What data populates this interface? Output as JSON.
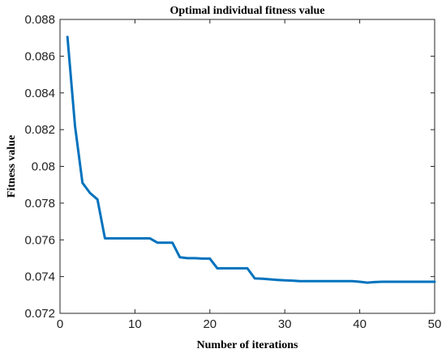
{
  "chart_data": {
    "type": "line",
    "title": "Optimal individual fitness value",
    "xlabel": "Number of iterations",
    "ylabel": "Fitness value",
    "xlim": [
      0,
      50
    ],
    "ylim": [
      0.072,
      0.088
    ],
    "xticks": [
      0,
      10,
      20,
      30,
      40,
      50
    ],
    "xtick_labels": [
      "0",
      "10",
      "20",
      "30",
      "40",
      "50"
    ],
    "yticks": [
      0.072,
      0.074,
      0.076,
      0.078,
      0.08,
      0.082,
      0.084,
      0.086,
      0.088
    ],
    "ytick_labels": [
      "0.072",
      "0.074",
      "0.076",
      "0.078",
      "0.08",
      "0.082",
      "0.084",
      "0.086",
      "0.088"
    ],
    "grid": false,
    "series": [
      {
        "color": "#0072BD",
        "x": [
          1,
          2,
          3,
          4,
          5,
          6,
          7,
          8,
          9,
          10,
          11,
          12,
          13,
          14,
          15,
          16,
          17,
          18,
          19,
          20,
          21,
          22,
          23,
          24,
          25,
          26,
          27,
          28,
          29,
          30,
          31,
          32,
          33,
          34,
          35,
          36,
          37,
          38,
          39,
          40,
          41,
          42,
          43,
          44,
          45,
          46,
          47,
          48,
          49,
          50
        ],
        "y": [
          0.08705,
          0.0822,
          0.0791,
          0.07855,
          0.0782,
          0.07608,
          0.07608,
          0.07608,
          0.07608,
          0.07608,
          0.07608,
          0.07608,
          0.07585,
          0.07585,
          0.07585,
          0.07505,
          0.075,
          0.075,
          0.07498,
          0.07498,
          0.07445,
          0.07445,
          0.07445,
          0.07445,
          0.07445,
          0.0739,
          0.07388,
          0.07385,
          0.07382,
          0.0738,
          0.07378,
          0.07375,
          0.07375,
          0.07375,
          0.07375,
          0.07375,
          0.07375,
          0.07375,
          0.07375,
          0.07372,
          0.07367,
          0.0737,
          0.07372,
          0.07372,
          0.07372,
          0.07372,
          0.07372,
          0.07372,
          0.07372,
          0.07372
        ]
      }
    ]
  }
}
